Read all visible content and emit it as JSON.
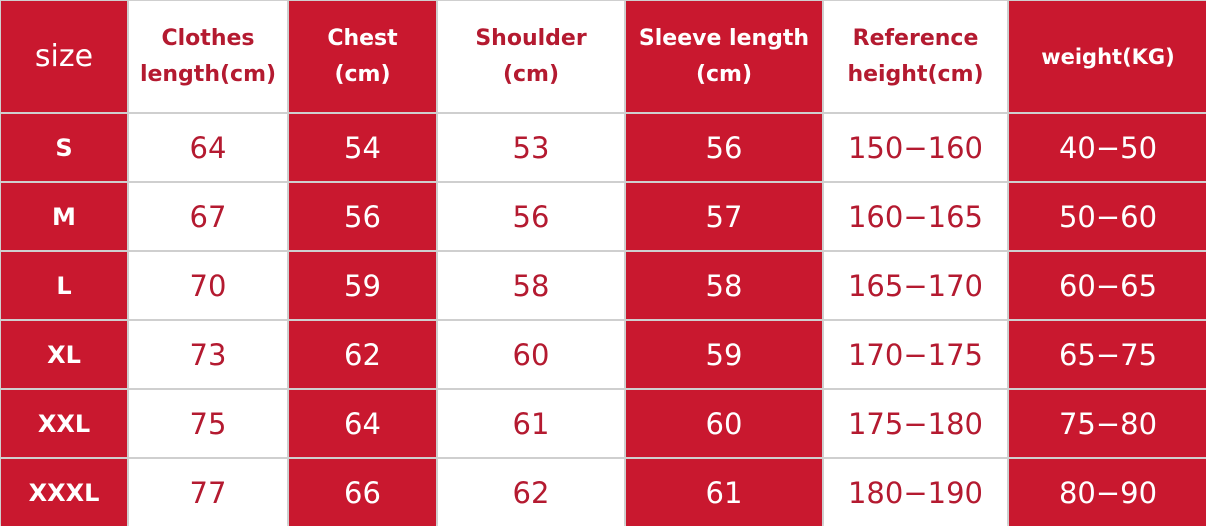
{
  "headers": [
    "size",
    "Clothes length(cm)",
    "Chest (cm)",
    "Shoulder (cm)",
    "Sleeve length (cm)",
    "Reference height(cm)",
    "weight(KG)"
  ],
  "header_lines": [
    [
      "size"
    ],
    [
      "Clothes",
      "length(cm)"
    ],
    [
      "Chest",
      "(cm)"
    ],
    [
      "Shoulder",
      "(cm)"
    ],
    [
      "Sleeve length",
      "(cm)"
    ],
    [
      "Reference",
      "height(cm)"
    ],
    [
      "weight(KG)"
    ]
  ],
  "rows": [
    [
      "S",
      "64",
      "54",
      "53",
      "56",
      "150-160",
      "40-50"
    ],
    [
      "M",
      "67",
      "56",
      "56",
      "57",
      "160-165",
      "50-60"
    ],
    [
      "L",
      "70",
      "59",
      "58",
      "58",
      "165-170",
      "60-65"
    ],
    [
      "XL",
      "73",
      "62",
      "60",
      "59",
      "170-175",
      "65-75"
    ],
    [
      "XXL",
      "75",
      "64",
      "61",
      "60",
      "175-180",
      "75-80"
    ],
    [
      "XXXL",
      "77",
      "66",
      "62",
      "61",
      "180-190",
      "80-90"
    ]
  ],
  "colors": {
    "red": "#c9182f",
    "white": "#ffffff",
    "red_text": "#b41a30",
    "grid": "#cfcfcf"
  }
}
